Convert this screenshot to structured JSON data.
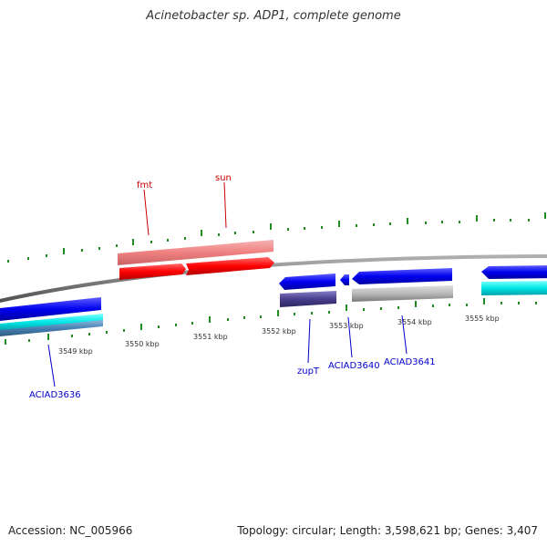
{
  "header": {
    "title": "Acinetobacter sp. ADP1, complete genome"
  },
  "footer": {
    "accession": "Accession: NC_005966",
    "summary": "Topology: circular; Length: 3,598,621 bp; Genes: 3,407"
  },
  "scale": {
    "tick_labels": [
      "3549 kbp",
      "3550 kbp",
      "3551 kbp",
      "3552 kbp",
      "3553 kbp",
      "3554 kbp",
      "3555 kbp"
    ]
  },
  "genes": {
    "fmt": "fmt",
    "sun": "sun",
    "zupT": "zupT",
    "aciad3640": "ACIAD3640",
    "aciad3641": "ACIAD3641",
    "aciad3636": "ACIAD3636"
  },
  "colors": {
    "forward_gene": "#ff0000",
    "forward_feature": "#f08080",
    "reverse_gene": "#0000ee",
    "reverse_feature_cyan": "#00ced1",
    "reverse_feature_steel": "#4682b4",
    "reverse_feature_slate": "#483d8b",
    "reverse_feature_gray": "#a9a9a9",
    "backbone": "#808080",
    "ticks": "#228b22"
  }
}
